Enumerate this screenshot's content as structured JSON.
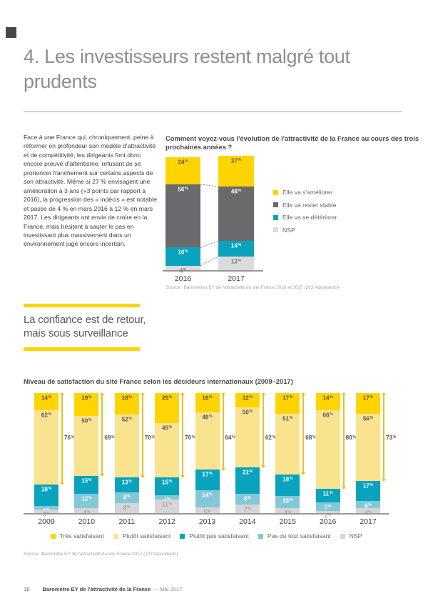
{
  "page": {
    "title": "4. Les investisseurs restent malgré tout prudents",
    "footer": {
      "page_number": "16",
      "title": "Baromètre EY de l'attractivité de la France",
      "date": "— Mai 2017"
    }
  },
  "intro": {
    "text": "Face à une France qui, chroniquement, peine à réformer en profondeur son modèle d'attractivité et de compétitivité, les dirigeants font donc encore preuve d'attentisme, refusant de se prononcer franchement sur certains aspects de son attractivité. Même si 27 % envisagent une amélioration à 3 ans (+3 points par rapport à 2016), la progression des « indécis » est notable et passe de 4 % en mars 2016 à 12 % en mars 2017. Les dirigeants ont envie de croire en la France, mais hésitent à sauter le pas en investissant plus massivement dans un environnement jugé encore incertain."
  },
  "section_heading": {
    "line1": "La confiance est de retour,",
    "line2": "mais sous surveillance"
  },
  "colors": {
    "ey_yellow": "#FFD400",
    "light_yellow": "#FAE38F",
    "dark_gray": "#6A6A6D",
    "teal": "#0AA3BE",
    "light_blue": "#84C8D8",
    "nsp_gray": "#D6D6D8",
    "bracket_gold": "#F0BE1E",
    "axis_gray": "#98989B"
  },
  "chart_data": [
    {
      "type": "bar",
      "stacked": true,
      "title": "Comment voyez-vous l'évolution de l'attractivité de la France au cours des trois prochaines années ?",
      "unit": "%",
      "categories": [
        "2016",
        "2017"
      ],
      "series": [
        {
          "name": "Elle va s'améliorer",
          "color": "#FFD400",
          "label_color": "#55555A",
          "label_bold": true,
          "values": [
            24,
            27
          ]
        },
        {
          "name": "Elle va rester stable",
          "color": "#6A6A6D",
          "label_color": "#FFFFFF",
          "label_bold": true,
          "values": [
            56,
            48
          ]
        },
        {
          "name": "Elle va se détériorer",
          "color": "#0AA3BE",
          "label_color": "#FFFFFF",
          "label_bold": true,
          "values": [
            16,
            14
          ]
        },
        {
          "name": "NSP",
          "color": "#DBDBDD",
          "label_color": "#77777B",
          "label_bold": true,
          "values": [
            4,
            12
          ]
        }
      ],
      "ylim": [
        0,
        100
      ],
      "legend_position": "right",
      "source": "Source : Baromètres EY de l'attractivité du site France 2016 et 2017 (203 répondants)"
    },
    {
      "type": "bar",
      "stacked": true,
      "title": "Niveau de satisfaction du site France selon les décideurs internationaux (2009–2017)",
      "unit": "%",
      "categories": [
        "2009",
        "2010",
        "2011",
        "2012",
        "2013",
        "2014",
        "2015",
        "2016",
        "2017"
      ],
      "series": [
        {
          "name": "Très satisfaisant",
          "color": "#FFD400",
          "label_color": "#55555A",
          "label_bold": true,
          "values": [
            14,
            19,
            18,
            25,
            16,
            12,
            17,
            14,
            17
          ]
        },
        {
          "name": "Plutôt satisfaisant",
          "color": "#FAE38F",
          "label_color": "#55555A",
          "label_bold": true,
          "values": [
            62,
            50,
            52,
            45,
            48,
            50,
            51,
            66,
            56
          ]
        },
        {
          "name": "Plutôt pas satisfaisant",
          "color": "#0AA3BE",
          "label_color": "#FFFFFF",
          "label_bold": true,
          "values": [
            18,
            15,
            13,
            15,
            17,
            22,
            18,
            11,
            17
          ]
        },
        {
          "name": "Pas du tout satisfaisant",
          "color": "#84C8D8",
          "label_color": "#FFFFFF",
          "label_bold": true,
          "values": [
            3,
            12,
            9,
            4,
            14,
            9,
            10,
            7,
            6
          ]
        },
        {
          "name": "NSP",
          "color": "#D6D6D8",
          "label_color": "#8E8E91",
          "label_bold": false,
          "values": [
            3,
            4,
            8,
            11,
            5,
            7,
            4,
            2,
            4
          ]
        }
      ],
      "satisfied_totals": [
        76,
        69,
        70,
        70,
        64,
        62,
        68,
        80,
        73
      ],
      "ylim": [
        0,
        100
      ],
      "legend_position": "bottom",
      "source": "Source : Baromètre EY de l'attractivité du site France 2017 (203 répondants)"
    }
  ]
}
